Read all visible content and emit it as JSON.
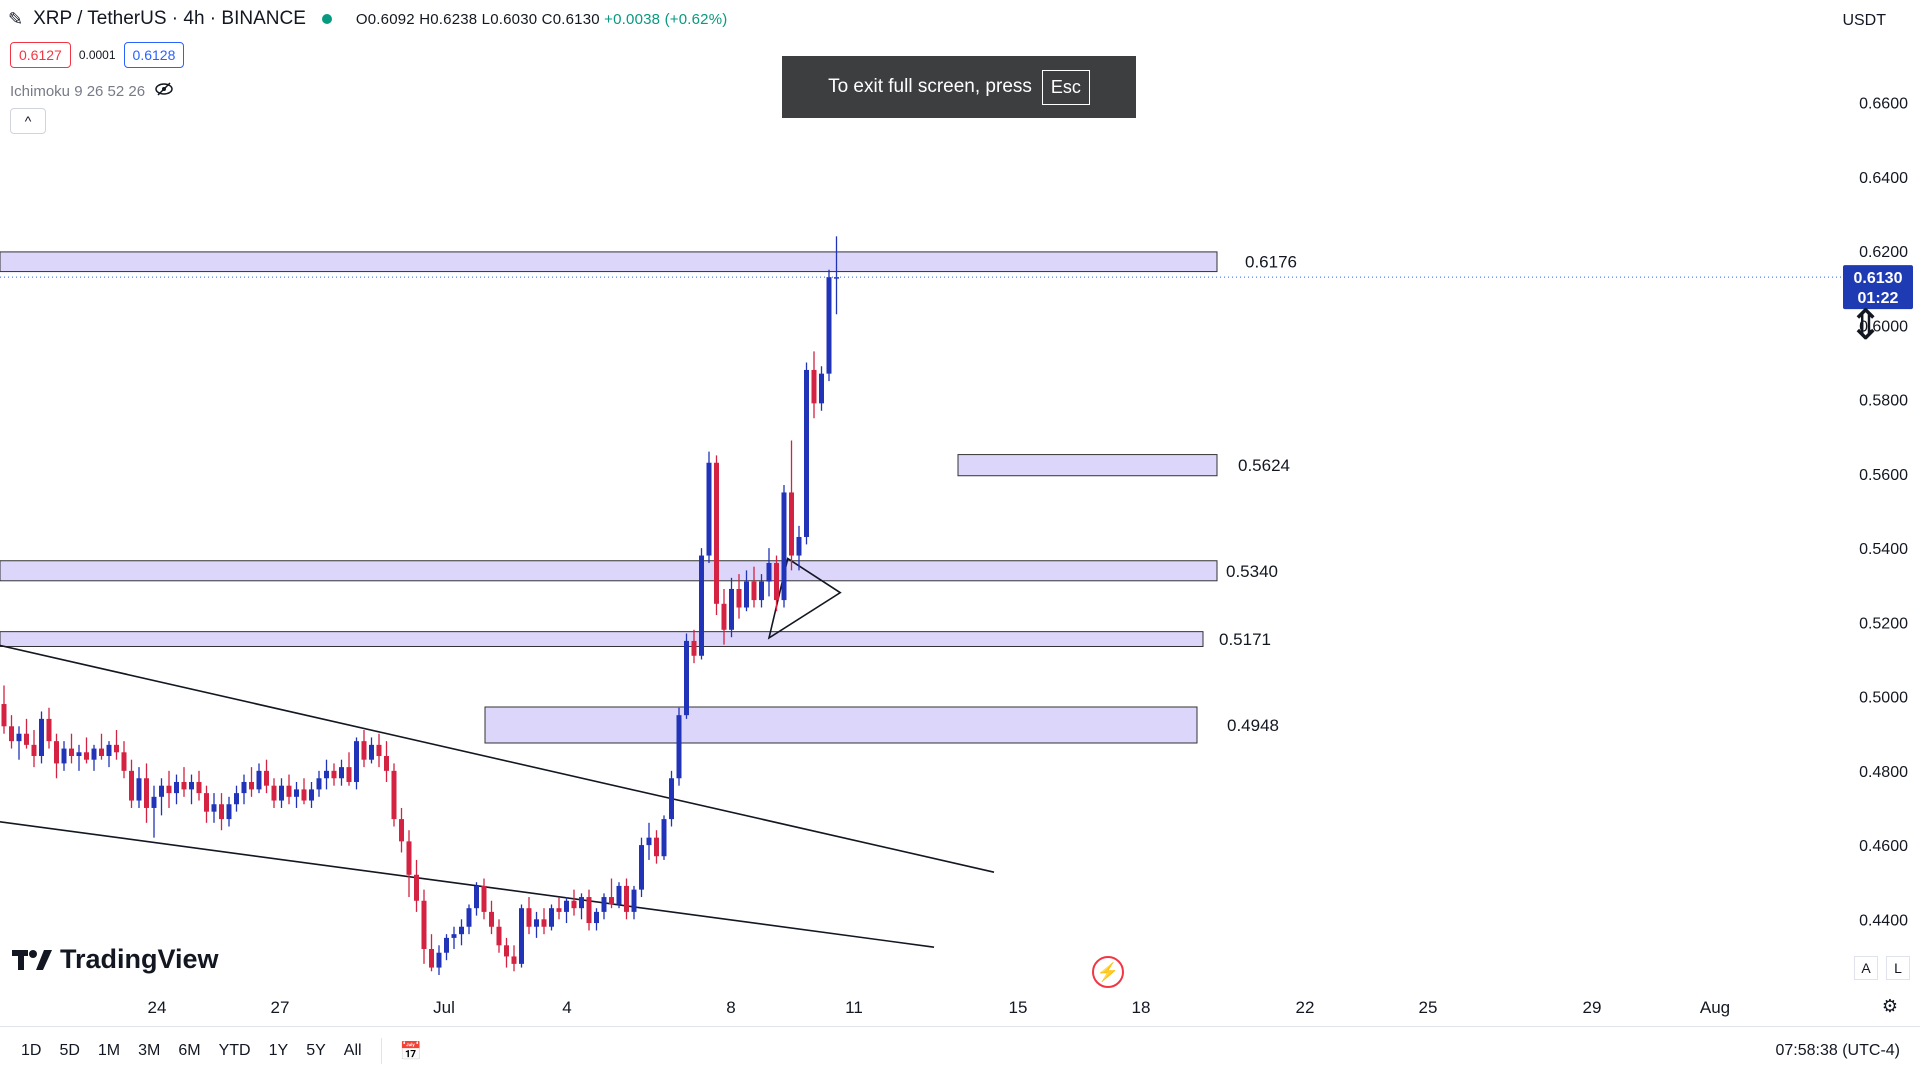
{
  "header": {
    "symbol": "XRP / TetherUS · 4h · BINANCE",
    "ohlc": "O0.6092  H0.6238  L0.6030  C0.6130",
    "change": "+0.0038 (+0.62%)",
    "sell_price": "0.6127",
    "spread": "0.0001",
    "buy_price": "0.6128",
    "indicator": "Ichimoku 9 26 52 26",
    "collapse_label": "^"
  },
  "toast": {
    "text": "To exit full screen, press",
    "key": "Esc"
  },
  "currency": "USDT",
  "logo_text": "TradingView",
  "scale_buttons": [
    "A",
    "L"
  ],
  "bottombar": {
    "timeframes": [
      "1D",
      "5D",
      "1M",
      "3M",
      "6M",
      "YTD",
      "1Y",
      "5Y",
      "All"
    ],
    "clock": "07:58:38 (UTC-4)"
  },
  "colors": {
    "up": "#2134b8",
    "down": "#d32242",
    "zone": "#dcd6fb",
    "zone_border": "#333333",
    "badge": "#1f3bb3"
  },
  "chart_data": {
    "type": "candlestick",
    "title": "XRP / TetherUS · 4h · BINANCE",
    "y_range": [
      0.425,
      0.6715
    ],
    "y_ticks": [
      "0.6600",
      "0.6400",
      "0.6200",
      "0.6000",
      "0.5800",
      "0.5600",
      "0.5400",
      "0.5200",
      "0.5000",
      "0.4800",
      "0.4600",
      "0.4400"
    ],
    "x_ticks": [
      "24",
      "27",
      "Jul",
      "4",
      "8",
      "11",
      "15",
      "18",
      "22",
      "25",
      "29",
      "Aug"
    ],
    "last_price": "0.6130",
    "countdown": "01:22",
    "zones": [
      {
        "label": "0.6176",
        "low": 0.6145,
        "high": 0.6198
      },
      {
        "label": "0.5624",
        "low": 0.5595,
        "high": 0.5652
      },
      {
        "label": "0.5340",
        "low": 0.5312,
        "high": 0.5366
      },
      {
        "label": "0.5171",
        "low": 0.5135,
        "high": 0.5175
      },
      {
        "label": "0.4948",
        "low": 0.4875,
        "high": 0.4972
      }
    ],
    "candles": [
      [
        0.498,
        0.503,
        0.49,
        0.492
      ],
      [
        0.492,
        0.495,
        0.486,
        0.488
      ],
      [
        0.488,
        0.492,
        0.483,
        0.49
      ],
      [
        0.49,
        0.494,
        0.486,
        0.487
      ],
      [
        0.487,
        0.491,
        0.481,
        0.484
      ],
      [
        0.484,
        0.496,
        0.482,
        0.494
      ],
      [
        0.494,
        0.497,
        0.486,
        0.488
      ],
      [
        0.488,
        0.49,
        0.478,
        0.482
      ],
      [
        0.482,
        0.488,
        0.48,
        0.486
      ],
      [
        0.486,
        0.49,
        0.482,
        0.484
      ],
      [
        0.484,
        0.487,
        0.48,
        0.485
      ],
      [
        0.485,
        0.489,
        0.482,
        0.483
      ],
      [
        0.483,
        0.487,
        0.48,
        0.486
      ],
      [
        0.486,
        0.49,
        0.483,
        0.484
      ],
      [
        0.484,
        0.488,
        0.481,
        0.487
      ],
      [
        0.487,
        0.491,
        0.483,
        0.485
      ],
      [
        0.485,
        0.488,
        0.478,
        0.48
      ],
      [
        0.48,
        0.483,
        0.47,
        0.472
      ],
      [
        0.472,
        0.481,
        0.47,
        0.478
      ],
      [
        0.478,
        0.482,
        0.466,
        0.47
      ],
      [
        0.47,
        0.476,
        0.462,
        0.473
      ],
      [
        0.473,
        0.478,
        0.468,
        0.476
      ],
      [
        0.476,
        0.48,
        0.47,
        0.474
      ],
      [
        0.474,
        0.479,
        0.471,
        0.477
      ],
      [
        0.477,
        0.481,
        0.473,
        0.475
      ],
      [
        0.475,
        0.479,
        0.471,
        0.477
      ],
      [
        0.477,
        0.48,
        0.472,
        0.474
      ],
      [
        0.474,
        0.476,
        0.466,
        0.469
      ],
      [
        0.469,
        0.474,
        0.466,
        0.471
      ],
      [
        0.471,
        0.474,
        0.464,
        0.467
      ],
      [
        0.467,
        0.473,
        0.465,
        0.471
      ],
      [
        0.471,
        0.476,
        0.469,
        0.474
      ],
      [
        0.474,
        0.479,
        0.471,
        0.477
      ],
      [
        0.477,
        0.481,
        0.473,
        0.475
      ],
      [
        0.475,
        0.482,
        0.474,
        0.48
      ],
      [
        0.48,
        0.483,
        0.474,
        0.476
      ],
      [
        0.476,
        0.478,
        0.47,
        0.472
      ],
      [
        0.472,
        0.478,
        0.47,
        0.476
      ],
      [
        0.476,
        0.479,
        0.471,
        0.473
      ],
      [
        0.473,
        0.477,
        0.47,
        0.475
      ],
      [
        0.475,
        0.478,
        0.471,
        0.472
      ],
      [
        0.472,
        0.477,
        0.47,
        0.475
      ],
      [
        0.475,
        0.48,
        0.473,
        0.478
      ],
      [
        0.478,
        0.483,
        0.475,
        0.48
      ],
      [
        0.48,
        0.482,
        0.476,
        0.478
      ],
      [
        0.478,
        0.483,
        0.476,
        0.481
      ],
      [
        0.481,
        0.485,
        0.476,
        0.477
      ],
      [
        0.477,
        0.489,
        0.475,
        0.488
      ],
      [
        0.488,
        0.491,
        0.481,
        0.483
      ],
      [
        0.483,
        0.489,
        0.482,
        0.487
      ],
      [
        0.487,
        0.49,
        0.481,
        0.484
      ],
      [
        0.484,
        0.488,
        0.477,
        0.48
      ],
      [
        0.48,
        0.482,
        0.465,
        0.467
      ],
      [
        0.467,
        0.47,
        0.458,
        0.461
      ],
      [
        0.461,
        0.464,
        0.446,
        0.452
      ],
      [
        0.452,
        0.456,
        0.442,
        0.445
      ],
      [
        0.445,
        0.448,
        0.428,
        0.432
      ],
      [
        0.432,
        0.436,
        0.426,
        0.427
      ],
      [
        0.427,
        0.433,
        0.425,
        0.431
      ],
      [
        0.431,
        0.436,
        0.429,
        0.435
      ],
      [
        0.435,
        0.438,
        0.432,
        0.436
      ],
      [
        0.436,
        0.44,
        0.433,
        0.438
      ],
      [
        0.438,
        0.444,
        0.436,
        0.443
      ],
      [
        0.443,
        0.45,
        0.441,
        0.449
      ],
      [
        0.449,
        0.451,
        0.44,
        0.442
      ],
      [
        0.442,
        0.445,
        0.436,
        0.438
      ],
      [
        0.438,
        0.44,
        0.431,
        0.433
      ],
      [
        0.433,
        0.435,
        0.427,
        0.43
      ],
      [
        0.43,
        0.433,
        0.426,
        0.428
      ],
      [
        0.428,
        0.444,
        0.427,
        0.443
      ],
      [
        0.443,
        0.446,
        0.436,
        0.438
      ],
      [
        0.438,
        0.442,
        0.435,
        0.44
      ],
      [
        0.44,
        0.443,
        0.436,
        0.438
      ],
      [
        0.438,
        0.444,
        0.437,
        0.443
      ],
      [
        0.443,
        0.446,
        0.44,
        0.442
      ],
      [
        0.442,
        0.446,
        0.439,
        0.445
      ],
      [
        0.445,
        0.448,
        0.441,
        0.443
      ],
      [
        0.443,
        0.447,
        0.44,
        0.446
      ],
      [
        0.446,
        0.448,
        0.437,
        0.439
      ],
      [
        0.439,
        0.443,
        0.437,
        0.442
      ],
      [
        0.442,
        0.447,
        0.44,
        0.446
      ],
      [
        0.446,
        0.451,
        0.443,
        0.444
      ],
      [
        0.444,
        0.45,
        0.443,
        0.449
      ],
      [
        0.449,
        0.451,
        0.44,
        0.442
      ],
      [
        0.442,
        0.449,
        0.44,
        0.448
      ],
      [
        0.448,
        0.462,
        0.446,
        0.46
      ],
      [
        0.46,
        0.466,
        0.456,
        0.462
      ],
      [
        0.462,
        0.464,
        0.455,
        0.457
      ],
      [
        0.457,
        0.468,
        0.456,
        0.467
      ],
      [
        0.467,
        0.48,
        0.465,
        0.478
      ],
      [
        0.478,
        0.497,
        0.476,
        0.495
      ],
      [
        0.495,
        0.517,
        0.494,
        0.515
      ],
      [
        0.515,
        0.518,
        0.509,
        0.511
      ],
      [
        0.511,
        0.54,
        0.51,
        0.538
      ],
      [
        0.538,
        0.566,
        0.536,
        0.563
      ],
      [
        0.563,
        0.565,
        0.522,
        0.525
      ],
      [
        0.525,
        0.529,
        0.514,
        0.518
      ],
      [
        0.518,
        0.532,
        0.516,
        0.529
      ],
      [
        0.529,
        0.533,
        0.521,
        0.524
      ],
      [
        0.524,
        0.534,
        0.523,
        0.531
      ],
      [
        0.531,
        0.535,
        0.524,
        0.526
      ],
      [
        0.526,
        0.533,
        0.524,
        0.531
      ],
      [
        0.531,
        0.54,
        0.527,
        0.536
      ],
      [
        0.536,
        0.538,
        0.523,
        0.526
      ],
      [
        0.526,
        0.557,
        0.524,
        0.555
      ],
      [
        0.555,
        0.569,
        0.534,
        0.538
      ],
      [
        0.538,
        0.546,
        0.534,
        0.543
      ],
      [
        0.543,
        0.59,
        0.541,
        0.588
      ],
      [
        0.588,
        0.593,
        0.575,
        0.579
      ],
      [
        0.579,
        0.589,
        0.577,
        0.587
      ],
      [
        0.587,
        0.615,
        0.585,
        0.613
      ],
      [
        0.613,
        0.624,
        0.603,
        0.613
      ]
    ],
    "lines": [
      {
        "name": "upper-trendline",
        "x1": -1,
        "y1": 0.514,
        "x2": 132,
        "y2": 0.4527
      },
      {
        "name": "lower-trendline",
        "x1": -1,
        "y1": 0.4664,
        "x2": 124,
        "y2": 0.4325
      }
    ],
    "triangle": [
      [
        104.5,
        0.5372
      ],
      [
        111.5,
        0.528
      ],
      [
        102,
        0.5158
      ]
    ]
  }
}
